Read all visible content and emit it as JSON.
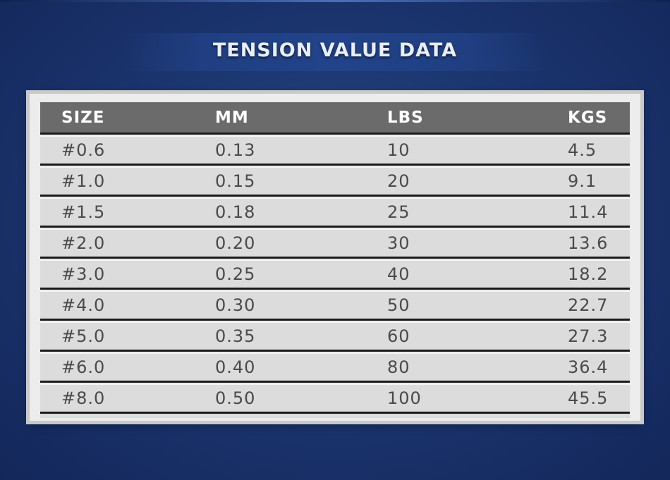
{
  "title": "TENSION VALUE DATA",
  "columns": [
    "SIZE",
    "MM",
    "LBS",
    "KGS"
  ],
  "rows": [
    [
      "#0.6",
      "0.13",
      "10",
      "4.5"
    ],
    [
      "#1.0",
      "0.15",
      "20",
      "9.1"
    ],
    [
      "#1.5",
      "0.18",
      "25",
      "11.4"
    ],
    [
      "#2.0",
      "0.20",
      "30",
      "13.6"
    ],
    [
      "#3.0",
      "0.25",
      "40",
      "18.2"
    ],
    [
      "#4.0",
      "0.30",
      "50",
      "22.7"
    ],
    [
      "#5.0",
      "0.35",
      "60",
      "27.3"
    ],
    [
      "#6.0",
      "0.40",
      "80",
      "36.4"
    ],
    [
      "#8.0",
      "0.50",
      "100",
      "45.5"
    ]
  ],
  "colors": {
    "background": "#1c3670",
    "header_row": "#6b6b6b",
    "body_row": "#dcdcdc",
    "text": "#4a4a4a"
  }
}
